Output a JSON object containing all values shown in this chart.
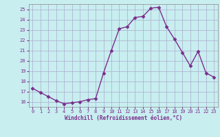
{
  "x": [
    0,
    1,
    2,
    3,
    4,
    5,
    6,
    7,
    8,
    9,
    10,
    11,
    12,
    13,
    14,
    15,
    16,
    17,
    18,
    19,
    20,
    21,
    22,
    23
  ],
  "y": [
    17.3,
    16.9,
    16.5,
    16.1,
    15.8,
    15.9,
    16.0,
    16.2,
    16.3,
    18.8,
    21.0,
    23.1,
    23.3,
    24.2,
    24.3,
    25.1,
    25.2,
    23.3,
    22.1,
    20.8,
    19.5,
    20.9,
    18.8,
    18.4
  ],
  "line_color": "#7b2d8b",
  "marker": "D",
  "markersize": 2.5,
  "linewidth": 1.0,
  "bg_color": "#c8eef0",
  "grid_color": "#aaaacc",
  "xlabel": "Windchill (Refroidissement éolien,°C)",
  "xlabel_color": "#7b2d8b",
  "tick_color": "#7b2d8b",
  "ylim": [
    15.5,
    25.5
  ],
  "yticks": [
    16,
    17,
    18,
    19,
    20,
    21,
    22,
    23,
    24,
    25
  ],
  "xticks": [
    0,
    1,
    2,
    3,
    4,
    5,
    6,
    7,
    8,
    9,
    10,
    11,
    12,
    13,
    14,
    15,
    16,
    17,
    18,
    19,
    20,
    21,
    22,
    23
  ],
  "xlim": [
    -0.5,
    23.5
  ]
}
